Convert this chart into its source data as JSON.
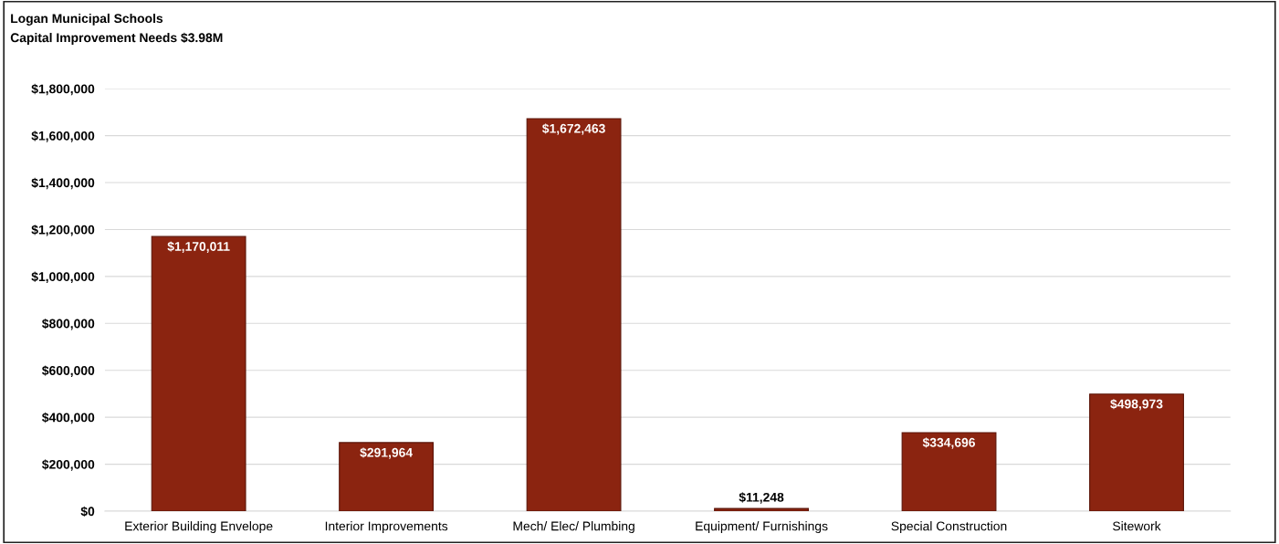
{
  "chart_data": {
    "type": "bar",
    "title": "Logan Municipal Schools",
    "subtitle": "Capital Improvement Needs $3.98M",
    "categories": [
      "Exterior Building Envelope",
      "Interior Improvements",
      "Mech/ Elec/ Plumbing",
      "Equipment/ Furnishings",
      "Special Construction",
      "Sitework"
    ],
    "values": [
      1170011,
      291964,
      1672463,
      11248,
      334696,
      498973
    ],
    "value_labels": [
      "$1,170,011",
      "$291,964",
      "$1,672,463",
      "$11,248",
      "$334,696",
      "$498,973"
    ],
    "color": "#8b2410",
    "ylim": [
      0,
      1800000
    ],
    "yticks": [
      {
        "value": 0,
        "label": "$0"
      },
      {
        "value": 200000,
        "label": "$200,000"
      },
      {
        "value": 400000,
        "label": "$400,000"
      },
      {
        "value": 600000,
        "label": "$600,000"
      },
      {
        "value": 800000,
        "label": "$800,000"
      },
      {
        "value": 1000000,
        "label": "$1,000,000"
      },
      {
        "value": 1200000,
        "label": "$1,200,000"
      },
      {
        "value": 1400000,
        "label": "$1,400,000"
      },
      {
        "value": 1600000,
        "label": "$1,600,000"
      },
      {
        "value": 1800000,
        "label": "$1,800,000"
      }
    ],
    "grid": "y",
    "legend": false
  }
}
